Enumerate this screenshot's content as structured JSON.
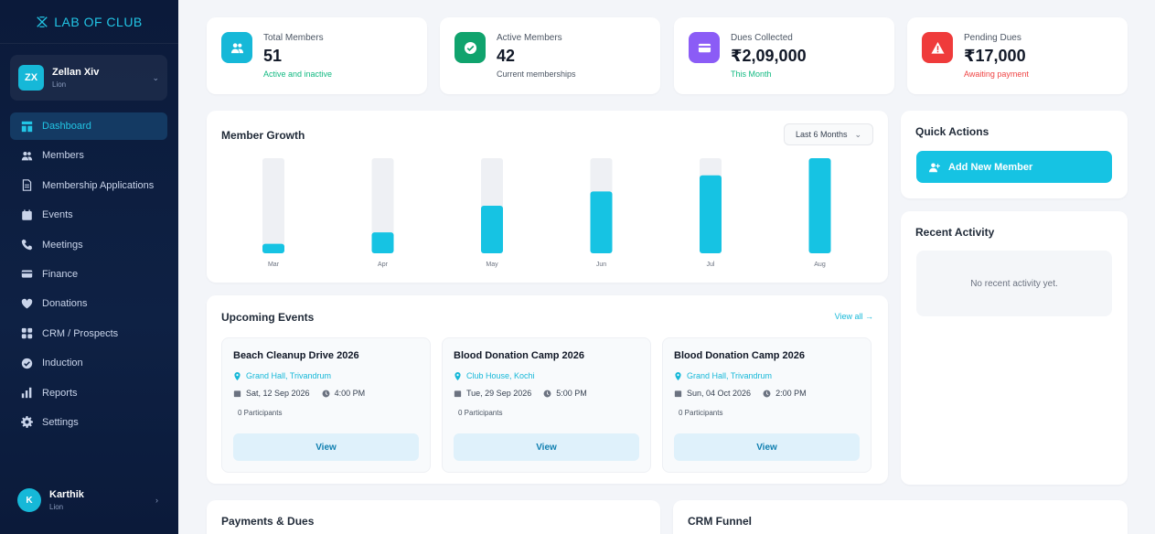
{
  "brand": {
    "name": "LAB OF CLUB"
  },
  "current_user": {
    "initials": "ZX",
    "name": "Zellan Xiv",
    "role": "Lion"
  },
  "sidebar": {
    "items": [
      {
        "label": "Dashboard",
        "icon": "dashboard-icon",
        "active": true
      },
      {
        "label": "Members",
        "icon": "users-icon"
      },
      {
        "label": "Membership Applications",
        "icon": "document-icon"
      },
      {
        "label": "Events",
        "icon": "calendar-icon"
      },
      {
        "label": "Meetings",
        "icon": "phone-icon"
      },
      {
        "label": "Finance",
        "icon": "card-icon"
      },
      {
        "label": "Donations",
        "icon": "heart-icon"
      },
      {
        "label": "CRM / Prospects",
        "icon": "grid-icon"
      },
      {
        "label": "Induction",
        "icon": "check-circle-icon"
      },
      {
        "label": "Reports",
        "icon": "bar-chart-icon"
      },
      {
        "label": "Settings",
        "icon": "gear-icon"
      }
    ]
  },
  "bottom_user": {
    "initials": "K",
    "name": "Karthik",
    "role": "Lion"
  },
  "stats": [
    {
      "label": "Total Members",
      "value": "51",
      "sub": "Active and inactive",
      "color": "#16b8d8",
      "sub_color": "#10b981",
      "icon": "users-icon"
    },
    {
      "label": "Active Members",
      "value": "42",
      "sub": "Current memberships",
      "color": "#10a36d",
      "sub_color": "#4b5563",
      "icon": "check-circle-icon"
    },
    {
      "label": "Dues Collected",
      "value": "₹2,09,000",
      "sub": "This Month",
      "color": "#8b5cf6",
      "sub_color": "#10b981",
      "icon": "card-icon"
    },
    {
      "label": "Pending Dues",
      "value": "₹17,000",
      "sub": "Awaiting payment",
      "color": "#ef3b3b",
      "sub_color": "#ef4444",
      "icon": "warning-icon"
    }
  ],
  "growth": {
    "title": "Member Growth",
    "range": "Last 6 Months"
  },
  "chart_data": {
    "type": "bar",
    "title": "Member Growth",
    "categories": [
      "Mar",
      "Apr",
      "May",
      "Jun",
      "Jul",
      "Aug"
    ],
    "values": [
      0.1,
      0.22,
      0.5,
      0.65,
      0.82,
      1.0
    ],
    "ylim": [
      0,
      1
    ],
    "grid": false,
    "colors": {
      "bar": "#16c3e3",
      "track": "#eef0f4"
    }
  },
  "events": {
    "title": "Upcoming Events",
    "view_all": "View all →",
    "items": [
      {
        "title": "Beach Cleanup Drive 2026",
        "location": "Grand Hall, Trivandrum",
        "date": "Sat, 12 Sep 2026",
        "time": "4:00 PM",
        "participants": "0 Participants",
        "action": "View"
      },
      {
        "title": "Blood Donation Camp 2026",
        "location": "Club House, Kochi",
        "date": "Tue, 29 Sep 2026",
        "time": "5:00 PM",
        "participants": "0 Participants",
        "action": "View"
      },
      {
        "title": "Blood Donation Camp 2026",
        "location": "Grand Hall, Trivandrum",
        "date": "Sun, 04 Oct 2026",
        "time": "2:00 PM",
        "participants": "0 Participants",
        "action": "View"
      }
    ]
  },
  "quick_actions": {
    "title": "Quick Actions",
    "add_member": "Add New Member"
  },
  "recent_activity": {
    "title": "Recent Activity",
    "empty": "No recent activity yet."
  },
  "payments": {
    "title": "Payments & Dues"
  },
  "crm": {
    "title": "CRM Funnel"
  }
}
